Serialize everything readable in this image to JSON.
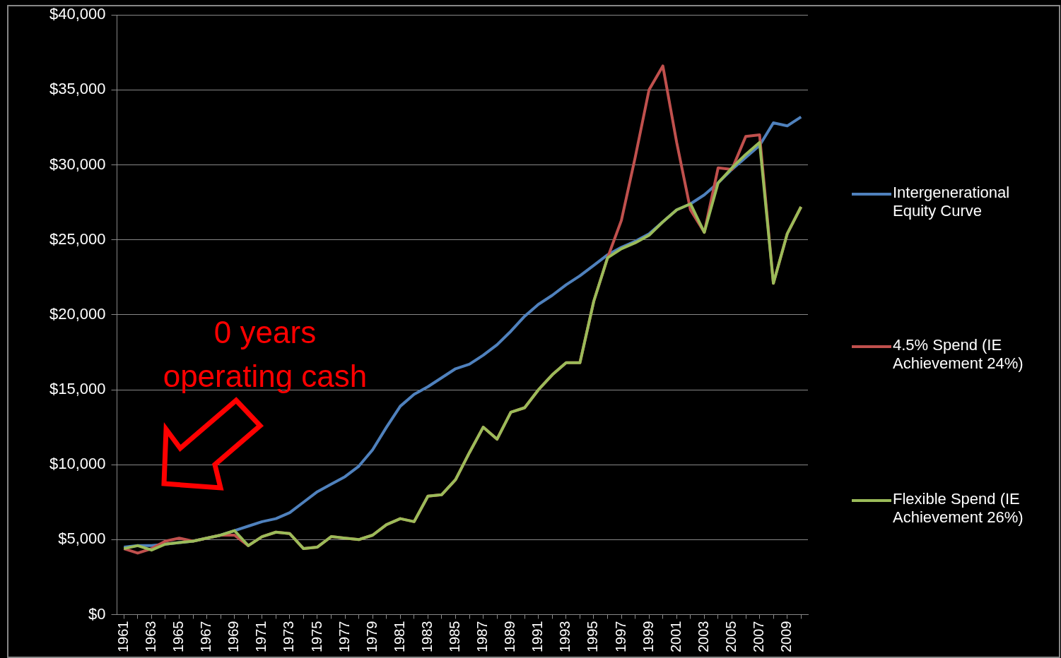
{
  "chart_data": {
    "type": "line",
    "categories": [
      "1961",
      null,
      "1963",
      null,
      "1965",
      null,
      "1967",
      null,
      "1969",
      null,
      "1971",
      null,
      "1973",
      null,
      "1975",
      null,
      "1977",
      null,
      "1979",
      null,
      "1981",
      null,
      "1983",
      null,
      "1985",
      null,
      "1987",
      null,
      "1989",
      null,
      "1991",
      null,
      "1993",
      null,
      "1995",
      null,
      "1997",
      null,
      "1999",
      null,
      "2001",
      null,
      "2003",
      null,
      "2005",
      null,
      "2007",
      null,
      "2009",
      null
    ],
    "series": [
      {
        "name": "Intergenerational Equity Curve",
        "color": "#4f81bd",
        "values": [
          4500,
          4600,
          4600,
          4700,
          4800,
          4900,
          5100,
          5300,
          5600,
          5900,
          6200,
          6400,
          6800,
          7500,
          8200,
          8700,
          9200,
          9900,
          11000,
          12500,
          13900,
          14700,
          15200,
          15800,
          16400,
          16700,
          17300,
          18000,
          18900,
          19900,
          20700,
          21300,
          22000,
          22600,
          23300,
          24000,
          24500,
          24900,
          25400,
          26200,
          27000,
          27400,
          28000,
          28800,
          29700,
          30500,
          31300,
          32800,
          32600,
          33200
        ]
      },
      {
        "name": "4.5% Spend (IE Achievement 24%)",
        "color": "#c0504d",
        "values": [
          4400,
          4100,
          4400,
          4900,
          5100,
          4900,
          5100,
          5300,
          5300,
          4600,
          5200,
          5500,
          5400,
          4400,
          4500,
          5200,
          5100,
          5000,
          5300,
          6000,
          6400,
          6200,
          7900,
          8000,
          9000,
          10800,
          12500,
          11700,
          13500,
          13800,
          15000,
          16000,
          16800,
          16800,
          20900,
          23800,
          26300,
          30500,
          35000,
          36600,
          31500,
          27000,
          25500,
          29800,
          29700,
          31900,
          32000,
          22100,
          25400,
          27200
        ]
      },
      {
        "name": "Flexible Spend (IE Achievement 26%)",
        "color": "#9bbb59",
        "values": [
          4400,
          4600,
          4300,
          4700,
          4800,
          4900,
          5100,
          5300,
          5600,
          4600,
          5200,
          5500,
          5400,
          4400,
          4500,
          5200,
          5100,
          5000,
          5300,
          6000,
          6400,
          6200,
          7900,
          8000,
          9000,
          10800,
          12500,
          11700,
          13500,
          13800,
          15000,
          16000,
          16800,
          16800,
          20900,
          23800,
          24400,
          24800,
          25300,
          26200,
          27000,
          27400,
          25500,
          28800,
          29800,
          30700,
          31500,
          22100,
          25400,
          27200
        ]
      }
    ],
    "ylim": [
      0,
      40000
    ],
    "yticks": [
      {
        "value": 0,
        "label": "$0"
      },
      {
        "value": 5000,
        "label": "$5,000"
      },
      {
        "value": 10000,
        "label": "$10,000"
      },
      {
        "value": 15000,
        "label": "$15,000"
      },
      {
        "value": 20000,
        "label": "$20,000"
      },
      {
        "value": 25000,
        "label": "$25,000"
      },
      {
        "value": 30000,
        "label": "$30,000"
      },
      {
        "value": 35000,
        "label": "$35,000"
      },
      {
        "value": 40000,
        "label": "$40,000"
      }
    ],
    "grid": "y",
    "legend": "right",
    "marker": "none",
    "line_style": "solid",
    "annotations": [
      "0 years operating cash"
    ]
  }
}
